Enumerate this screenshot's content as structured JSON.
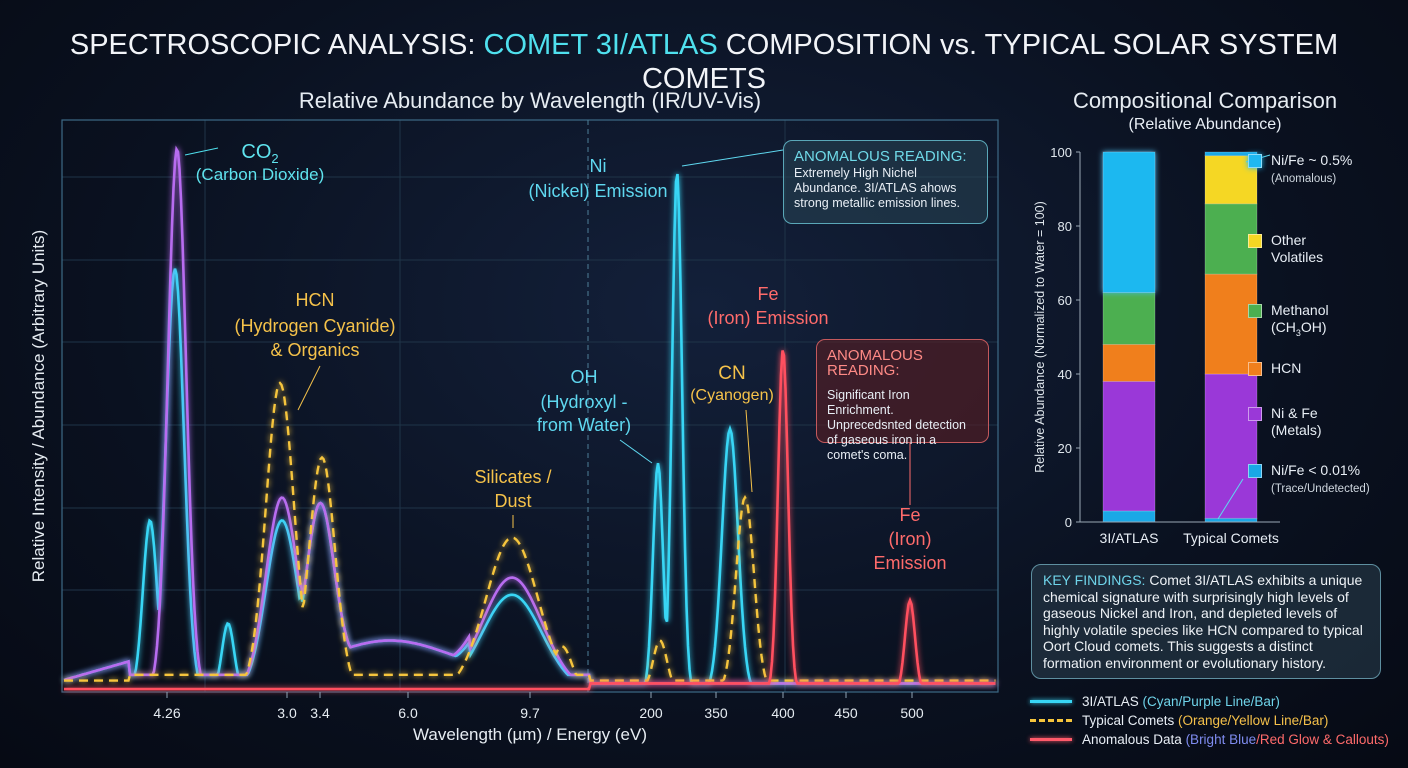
{
  "title": {
    "prefix": "SPECTROSCOPIC ANALYSIS: ",
    "highlight": "COMET 3I/ATLAS",
    "suffix": " COMPOSITION vs. TYPICAL SOLAR SYSTEM COMETS"
  },
  "chart_data": [
    {
      "type": "line",
      "title": "Relative Abundance by Wavelength (IR/UV-Vis)",
      "xlabel": "Wavelength (µm) / Energy (eV)",
      "ylabel": "Relative Intensity / Abundance (Arbitrary Units)",
      "x_ticks": [
        "4.26",
        "3.0",
        "3.4",
        "6.0",
        "9.7",
        "200",
        "350",
        "400",
        "450",
        "500"
      ],
      "ylim": [
        0,
        100
      ],
      "grid": true,
      "series": [
        {
          "name": "3I/ATLAS (Cyan)",
          "color": "#38d6f5",
          "style": "solid",
          "peaks": [
            {
              "near": "4.26",
              "intensity": 74
            },
            {
              "near": "4.26-shoulder",
              "intensity": 30
            },
            {
              "near": "3.0-3.4 dip",
              "intensity": 12
            },
            {
              "near": "3.0",
              "intensity": 30
            },
            {
              "near": "3.4",
              "intensity": 30
            },
            {
              "near": "9.7",
              "intensity": 17
            },
            {
              "near": "200",
              "intensity": 40
            },
            {
              "near": "200-350 Ni",
              "intensity": 91
            },
            {
              "near": "350",
              "intensity": 46
            }
          ]
        },
        {
          "name": "3I/ATLAS (Purple)",
          "color": "#b86cf0",
          "style": "solid",
          "peaks": [
            {
              "near": "4.26",
              "intensity": 95
            },
            {
              "near": "3.0",
              "intensity": 34
            },
            {
              "near": "3.4",
              "intensity": 30
            },
            {
              "near": "9.7",
              "intensity": 20
            }
          ]
        },
        {
          "name": "Typical Comets",
          "color": "#f6c53c",
          "style": "dashed",
          "peaks": [
            {
              "near": "3.0",
              "intensity": 54
            },
            {
              "near": "3.4",
              "intensity": 41
            },
            {
              "near": "9.7",
              "intensity": 27
            },
            {
              "near": "9.7+",
              "intensity": 8
            },
            {
              "near": "200",
              "intensity": 9
            },
            {
              "near": "350-400",
              "intensity": 34
            }
          ]
        },
        {
          "name": "Anomalous Data",
          "color": "#ff4f5e",
          "style": "solid",
          "peaks": [
            {
              "near": "400",
              "intensity": 60
            },
            {
              "near": "500",
              "intensity": 16
            }
          ]
        }
      ],
      "annotations": {
        "co2": {
          "formula": "CO",
          "sub": "2",
          "name": "(Carbon Dioxide)"
        },
        "hcn": {
          "l1": "HCN",
          "l2": "(Hydrogen Cyanide)",
          "l3": "& Organics"
        },
        "silicates": {
          "l1": "Silicates /",
          "l2": "Dust"
        },
        "oh": {
          "l1": "OH",
          "l2": "(Hydroxyl -",
          "l3": "from Water)"
        },
        "ni": {
          "l1": "Ni",
          "l2": "(Nickel) Emission"
        },
        "cn": {
          "l1": "CN",
          "l2": "(Cyanogen)"
        },
        "fe1": {
          "l1": "Fe",
          "l2": "(Iron) Emission"
        },
        "fe2": {
          "l1": "Fe",
          "l2": "(Iron)",
          "l3": "Emission"
        }
      }
    },
    {
      "type": "bar",
      "stacked": true,
      "title": "Compositional Comparison",
      "subtitle": "(Relative Abundance)",
      "ylabel": "Relative Abundance (Normalized to Water = 100)",
      "ylim": [
        0,
        100
      ],
      "y_ticks": [
        "0",
        "20",
        "40",
        "60",
        "80",
        "100"
      ],
      "categories": [
        "3I/ATLAS",
        "Typical Comets"
      ],
      "segments": [
        {
          "category": "3I/ATLAS",
          "stack": [
            {
              "key": "trace",
              "from": 0,
              "to": 3
            },
            {
              "key": "metals",
              "from": 3,
              "to": 38
            },
            {
              "key": "hcn",
              "from": 38,
              "to": 48
            },
            {
              "key": "methanol",
              "from": 48,
              "to": 62
            },
            {
              "key": "nife_high",
              "from": 62,
              "to": 100
            }
          ]
        },
        {
          "category": "Typical Comets",
          "stack": [
            {
              "key": "trace",
              "from": 0,
              "to": 1
            },
            {
              "key": "metals",
              "from": 1,
              "to": 40
            },
            {
              "key": "hcn",
              "from": 40,
              "to": 67
            },
            {
              "key": "methanol",
              "from": 67,
              "to": 86
            },
            {
              "key": "other",
              "from": 86,
              "to": 99
            },
            {
              "key": "trace",
              "from": 99,
              "to": 100
            }
          ]
        }
      ],
      "legend": [
        {
          "key": "nife_high",
          "label": "Ni/Fe ~ 0.5%",
          "note": "(Anomalous)",
          "color": "#1fb8f0"
        },
        {
          "key": "other",
          "label": "Other",
          "label2": "Volatiles",
          "color": "#f5d724"
        },
        {
          "key": "methanol",
          "label": "Methanol",
          "label2": "(CH",
          "sub": "3",
          "label3": "OH)",
          "color": "#4caf50"
        },
        {
          "key": "hcn",
          "label": "HCN",
          "color": "#f07f1c"
        },
        {
          "key": "metals",
          "label": "Ni & Fe",
          "label2": "(Metals)",
          "color": "#9a38d8"
        },
        {
          "key": "trace",
          "label": "Ni/Fe < 0.01%",
          "note": "(Trace/Undetected)",
          "color": "#1aa8e6"
        }
      ]
    }
  ],
  "callouts": {
    "nickel": {
      "heading": "ANOMALOUS READING:",
      "text": "Extremely High Nichel Abundance. 3I/ATLAS ahows strong metallic emission lines."
    },
    "iron": {
      "heading": "ANOMALOUS READING:",
      "text": "Significant Iron Enrichment. Unprecedsnted detection of gaseous iron in a comet's coma."
    },
    "findings": {
      "heading": "KEY FINDINGS:",
      "text": " Comet 3I/ATLAS exhibits a unique chemical signature with surprisingly high levels of gaseous Nickel and Iron, and depleted levels of highly volatile species like HCN compared to typical Oort Cloud comets. This suggests a distinct formation environment or evolutionary history."
    }
  },
  "legend": [
    {
      "label": "3I/ATLAS ",
      "note": "(Cyan/Purple Line/Bar)",
      "color": "#38d6f5",
      "note_color": "#6fd4ea"
    },
    {
      "label": "Typical Comets ",
      "note": "(Orange/Yellow Line/Bar)",
      "color": "#f6c53c",
      "note_color": "#f5c04a"
    },
    {
      "label": "Anomalous Data ",
      "note_a": "(Bright Blue",
      "note_b": "/Red Glow & Callouts)",
      "color": "#ff5a6a",
      "note_a_color": "#7f8cf0",
      "note_b_color": "#ff6b6b"
    }
  ]
}
